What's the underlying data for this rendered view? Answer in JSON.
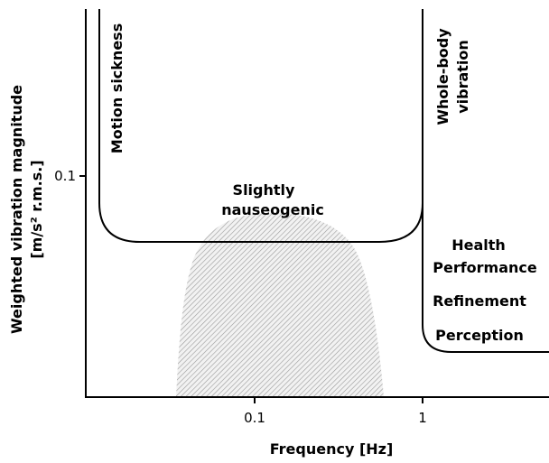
{
  "axes": {
    "x_label": "Frequency [Hz]",
    "y_label": [
      "Weighted vibration magnitude",
      "[m/s² r.m.s.]"
    ],
    "x_ticks": [
      "0.1",
      "1"
    ],
    "y_ticks": [
      "0.1"
    ]
  },
  "regions": {
    "motion_sickness": "Motion sickness",
    "whole_body": [
      "Whole-body",
      "vibration"
    ],
    "nauseogenic": [
      "Slightly",
      "nauseogenic"
    ],
    "criteria": [
      "Health",
      "Performance",
      "Refinement",
      "Perception"
    ]
  }
}
